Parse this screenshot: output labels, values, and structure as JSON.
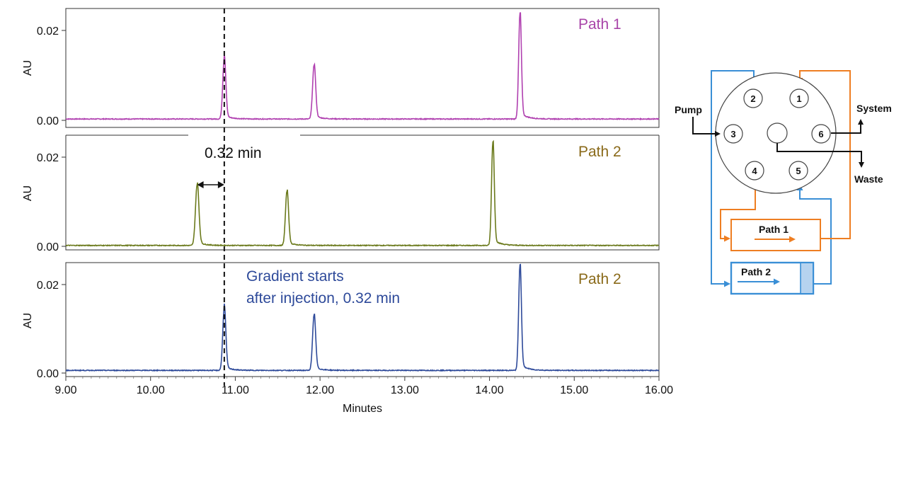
{
  "chart_data": [
    {
      "type": "line",
      "title": "",
      "xlabel": "",
      "ylabel": "AU",
      "xlim": [
        9.0,
        16.0
      ],
      "ylim": [
        -0.001,
        0.025
      ],
      "y_ticks": [
        "0.00",
        "0.02"
      ],
      "y_tick_values": [
        0.0,
        0.02
      ],
      "legend_label": "Path 1",
      "color": "#b040b0",
      "baseline": 0.0003,
      "peaks": [
        {
          "t": 10.87,
          "h": 0.0135,
          "w": 0.018
        },
        {
          "t": 11.93,
          "h": 0.012,
          "w": 0.018
        },
        {
          "t": 14.36,
          "h": 0.0235,
          "w": 0.016
        }
      ]
    },
    {
      "type": "line",
      "title": "",
      "xlabel": "",
      "ylabel": "AU",
      "xlim": [
        9.0,
        16.0
      ],
      "ylim": [
        -0.001,
        0.025
      ],
      "y_ticks": [
        "0.00",
        "0.02"
      ],
      "y_tick_values": [
        0.0,
        0.02
      ],
      "legend_label": "Path 2",
      "color": "#6b7a1c",
      "baseline": 0.0002,
      "peaks": [
        {
          "t": 10.55,
          "h": 0.0137,
          "w": 0.02
        },
        {
          "t": 11.61,
          "h": 0.0122,
          "w": 0.018
        },
        {
          "t": 14.04,
          "h": 0.0232,
          "w": 0.016
        }
      ]
    },
    {
      "type": "line",
      "title": "",
      "xlabel": "Minutes",
      "ylabel": "AU",
      "xlim": [
        9.0,
        16.0
      ],
      "ylim": [
        -0.001,
        0.025
      ],
      "y_ticks": [
        "0.00",
        "0.02"
      ],
      "y_tick_values": [
        0.0,
        0.02
      ],
      "x_ticks": [
        "9.00",
        "10.00",
        "11.00",
        "12.00",
        "13.00",
        "14.00",
        "15.00",
        "16.00"
      ],
      "x_tick_values": [
        9,
        10,
        11,
        12,
        13,
        14,
        15,
        16
      ],
      "legend_label": "Path 2",
      "color": "#2e4a9a",
      "baseline": 0.0006,
      "peaks": [
        {
          "t": 10.87,
          "h": 0.0142,
          "w": 0.018
        },
        {
          "t": 11.93,
          "h": 0.0125,
          "w": 0.018
        },
        {
          "t": 14.36,
          "h": 0.0238,
          "w": 0.016
        }
      ]
    }
  ],
  "annotations": {
    "offset_label": "0.32 min",
    "offset_minutes": 0.32,
    "dashed_line_time": 10.87,
    "gradient_line1": "Gradient starts",
    "gradient_line2": "after injection, 0.32 min",
    "gradient_color": "#2e4a9a"
  },
  "path_label_colors": {
    "path1": "#a844a8",
    "path2": "#8a6a1a"
  },
  "valve_diagram": {
    "ports": [
      "1",
      "2",
      "3",
      "4",
      "5",
      "6"
    ],
    "pump_label": "Pump",
    "system_label": "System",
    "waste_label": "Waste",
    "loop1_label": "Path 1",
    "loop2_label": "Path 2",
    "orange": "#ee7e22",
    "blue": "#3a8fd6"
  }
}
